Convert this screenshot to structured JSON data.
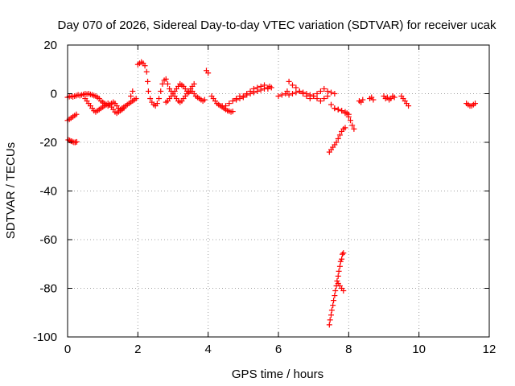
{
  "chart_data": {
    "type": "scatter",
    "title": "Day 070 of 2026, Sidereal Day-to-day VTEC variation (SDTVAR) for receiver ucak",
    "xlabel": "GPS time / hours",
    "ylabel": "SDTVAR / TECUs",
    "xlim": [
      0,
      12
    ],
    "ylim": [
      -100,
      20
    ],
    "xticks": [
      0,
      2,
      4,
      6,
      8,
      10,
      12
    ],
    "yticks": [
      -100,
      -80,
      -60,
      -40,
      -20,
      0,
      20
    ],
    "xtick_labels": [
      "0",
      "2",
      "4",
      "6",
      "8",
      "10",
      "12"
    ],
    "ytick_labels": [
      "-100",
      "-80",
      "-60",
      "-40",
      "-20",
      "0",
      "20"
    ],
    "grid": true,
    "marker": "+",
    "marker_color": "#ff0000",
    "series": [
      {
        "name": "SDTVAR",
        "x": [
          0.0,
          0.05,
          0.1,
          0.15,
          0.2,
          0.25,
          0.3,
          0.35,
          0.4,
          0.45,
          0.5,
          0.55,
          0.6,
          0.65,
          0.7,
          0.75,
          0.8,
          0.85,
          0.9,
          0.95,
          1.0,
          1.05,
          1.1,
          1.15,
          1.2,
          1.25,
          1.3,
          1.35,
          1.4,
          1.45,
          1.5,
          1.55,
          1.6,
          1.65,
          1.7,
          1.75,
          1.8,
          1.85,
          1.9,
          1.95,
          0.5,
          0.55,
          0.6,
          0.65,
          0.7,
          0.75,
          0.8,
          0.85,
          0.9,
          0.95,
          1.0,
          1.05,
          1.1,
          1.15,
          1.2,
          1.25,
          1.3,
          1.35,
          1.4,
          1.45,
          1.5,
          1.55,
          1.6,
          0.0,
          0.05,
          0.1,
          0.15,
          0.2,
          0.25,
          0.02,
          0.06,
          0.1,
          0.14,
          0.18,
          0.22,
          0.26,
          1.8,
          1.85,
          2.0,
          2.05,
          2.1,
          2.15,
          2.2,
          2.25,
          2.28,
          2.3,
          2.35,
          2.4,
          2.45,
          2.5,
          2.55,
          2.6,
          2.65,
          2.7,
          2.75,
          2.8,
          2.85,
          2.9,
          2.95,
          3.0,
          3.05,
          3.1,
          3.15,
          3.2,
          3.25,
          3.3,
          3.35,
          3.4,
          3.45,
          3.5,
          3.55,
          3.6,
          3.65,
          3.7,
          3.75,
          3.8,
          3.85,
          3.9,
          2.8,
          2.85,
          2.9,
          2.95,
          3.0,
          3.05,
          3.1,
          3.15,
          3.2,
          3.25,
          3.3,
          3.35,
          3.4,
          3.45,
          3.5,
          3.55,
          3.6,
          3.95,
          4.0,
          4.1,
          4.15,
          4.2,
          4.25,
          4.3,
          4.35,
          4.4,
          4.45,
          4.5,
          4.55,
          4.6,
          4.65,
          4.7,
          4.4,
          4.5,
          4.6,
          4.7,
          4.8,
          4.9,
          5.0,
          5.1,
          5.2,
          5.3,
          5.4,
          5.5,
          5.6,
          5.7,
          5.75,
          5.8,
          4.8,
          4.9,
          5.0,
          5.1,
          5.2,
          5.3,
          5.4,
          5.5,
          5.6,
          5.7,
          6.0,
          6.1,
          6.2,
          6.25,
          6.3,
          6.4,
          6.5,
          6.6,
          6.7,
          6.8,
          6.9,
          7.0,
          7.1,
          7.2,
          7.3,
          7.4,
          7.5,
          7.6,
          6.3,
          6.4,
          6.5,
          6.6,
          6.7,
          6.8,
          6.9,
          7.0,
          7.1,
          7.2,
          7.3,
          7.4,
          7.5,
          7.6,
          7.7,
          7.8,
          7.9,
          7.95,
          8.0,
          7.6,
          7.7,
          7.8,
          7.9,
          8.0,
          8.05,
          8.1,
          8.15,
          7.45,
          7.5,
          7.55,
          7.6,
          7.65,
          7.7,
          7.75,
          7.8,
          7.85,
          7.9,
          7.45,
          7.47,
          7.5,
          7.52,
          7.55,
          7.57,
          7.6,
          7.62,
          7.65,
          7.67,
          7.7,
          7.72,
          7.75,
          7.77,
          7.8,
          7.82,
          7.85,
          7.7,
          7.75,
          7.8,
          7.85,
          8.3,
          8.35,
          8.4,
          8.6,
          8.65,
          8.7,
          9.0,
          9.05,
          9.1,
          9.15,
          9.2,
          9.25,
          9.3,
          9.5,
          9.55,
          9.6,
          9.65,
          9.7,
          11.35,
          11.4,
          11.45,
          11.5,
          11.55,
          11.6
        ],
        "y": [
          -1.5,
          -1.2,
          -1.0,
          -1.3,
          -1.0,
          -0.8,
          -0.5,
          -0.8,
          -0.5,
          -0.3,
          0.0,
          -0.2,
          0.0,
          -0.3,
          -0.5,
          -0.8,
          -1.0,
          -1.5,
          -2.0,
          -3.0,
          -3.5,
          -4.0,
          -4.5,
          -5.0,
          -4.5,
          -4.0,
          -3.5,
          -4.0,
          -5.0,
          -6.0,
          -6.5,
          -6.0,
          -5.5,
          -5.0,
          -4.5,
          -4.0,
          -3.5,
          -3.0,
          -2.5,
          -2.0,
          -2.0,
          -3.0,
          -4.0,
          -5.0,
          -6.0,
          -7.0,
          -7.5,
          -7.0,
          -6.5,
          -6.0,
          -5.5,
          -5.0,
          -4.5,
          -4.0,
          -4.5,
          -5.5,
          -6.5,
          -7.5,
          -8.0,
          -7.5,
          -7.0,
          -6.5,
          -6.0,
          -11.0,
          -10.5,
          -10.0,
          -9.5,
          -9.0,
          -8.5,
          -19.0,
          -19.2,
          -19.5,
          -19.7,
          -20.0,
          -20.0,
          -19.8,
          -1.0,
          1.0,
          12.0,
          12.5,
          13.0,
          12.5,
          11.5,
          9.0,
          5.0,
          1.0,
          -2.0,
          -3.5,
          -4.5,
          -5.0,
          -4.0,
          -2.0,
          1.0,
          4.0,
          5.5,
          6.0,
          4.0,
          2.0,
          1.0,
          0.0,
          -1.0,
          -2.0,
          -3.0,
          -3.5,
          -3.0,
          -2.0,
          -1.0,
          0.0,
          1.0,
          2.0,
          1.0,
          0.0,
          -1.0,
          -1.5,
          -2.0,
          -2.5,
          -3.0,
          -2.5,
          -3.5,
          -3.0,
          -2.0,
          -1.0,
          0.0,
          1.0,
          2.0,
          3.0,
          4.0,
          3.5,
          3.0,
          2.0,
          1.0,
          0.5,
          1.0,
          3.0,
          4.0,
          9.5,
          8.5,
          -1.0,
          -2.0,
          -3.0,
          -4.0,
          -4.5,
          -5.0,
          -5.5,
          -6.0,
          -6.5,
          -7.0,
          -7.2,
          -7.5,
          -7.3,
          -5.0,
          -5.0,
          -4.0,
          -3.0,
          -2.5,
          -2.0,
          -1.0,
          0.0,
          1.0,
          2.0,
          2.5,
          3.0,
          3.5,
          2.0,
          3.0,
          2.5,
          -2.0,
          -1.0,
          -1.5,
          -0.5,
          0.0,
          0.5,
          1.0,
          1.5,
          2.0,
          2.5,
          -1.0,
          -0.5,
          0.0,
          1.0,
          5.0,
          3.5,
          2.5,
          1.0,
          0.0,
          -1.0,
          -2.0,
          -1.0,
          0.0,
          1.0,
          2.0,
          1.0,
          0.5,
          0.0,
          -0.5,
          0.0,
          0.5,
          1.0,
          0.5,
          0.0,
          -0.5,
          -1.0,
          -2.0,
          -3.0,
          -2.0,
          -1.0,
          -4.5,
          -6.0,
          -6.5,
          -7.0,
          -7.5,
          -8.0,
          -8.5,
          -6.0,
          -6.5,
          -7.0,
          -8.0,
          -9.5,
          -11.0,
          -13.0,
          -14.5,
          -24.0,
          -23.0,
          -22.0,
          -21.0,
          -20.0,
          -18.5,
          -17.0,
          -15.5,
          -14.5,
          -14.0,
          -95.0,
          -93.0,
          -91.0,
          -89.0,
          -87.0,
          -85.0,
          -83.0,
          -81.0,
          -79.0,
          -77.0,
          -75.0,
          -73.0,
          -71.0,
          -69.0,
          -68.0,
          -66.0,
          -65.5,
          -78.0,
          -79.0,
          -80.0,
          -81.0,
          -3.0,
          -3.5,
          -2.5,
          -2.0,
          -1.5,
          -2.5,
          -1.0,
          -2.0,
          -1.5,
          -2.5,
          -2.0,
          -1.0,
          -1.5,
          -1.0,
          -2.0,
          -3.0,
          -4.0,
          -5.0,
          -4.0,
          -4.5,
          -5.0,
          -5.0,
          -4.5,
          -4.0
        ]
      }
    ]
  }
}
